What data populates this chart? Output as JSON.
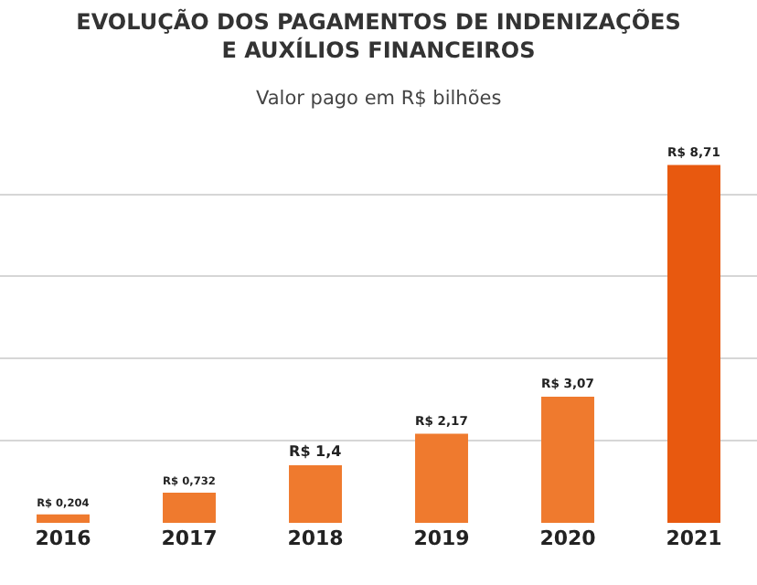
{
  "chart_data": {
    "type": "bar",
    "title": "EVOLUÇÃO DOS PAGAMENTOS DE INDENIZAÇÕES\nE AUXÍLIOS FINANCEIROS",
    "subtitle": "Valor pago em R$ bilhões",
    "categories": [
      "2016",
      "2017",
      "2018",
      "2019",
      "2020",
      "2021"
    ],
    "values": [
      0.204,
      0.732,
      1.4,
      2.17,
      3.07,
      8.71
    ],
    "colors": [
      "#ef7a2e",
      "#ef7a2e",
      "#ef7a2e",
      "#ef7a2e",
      "#ef7a2e",
      "#e8590f"
    ],
    "value_labels": [
      "R$ 0,204",
      "R$ 0,732",
      "R$ 1,4",
      "R$ 2,17",
      "R$ 3,07",
      "R$ 8,71"
    ],
    "grid": "y",
    "tick_labels": "x"
  }
}
